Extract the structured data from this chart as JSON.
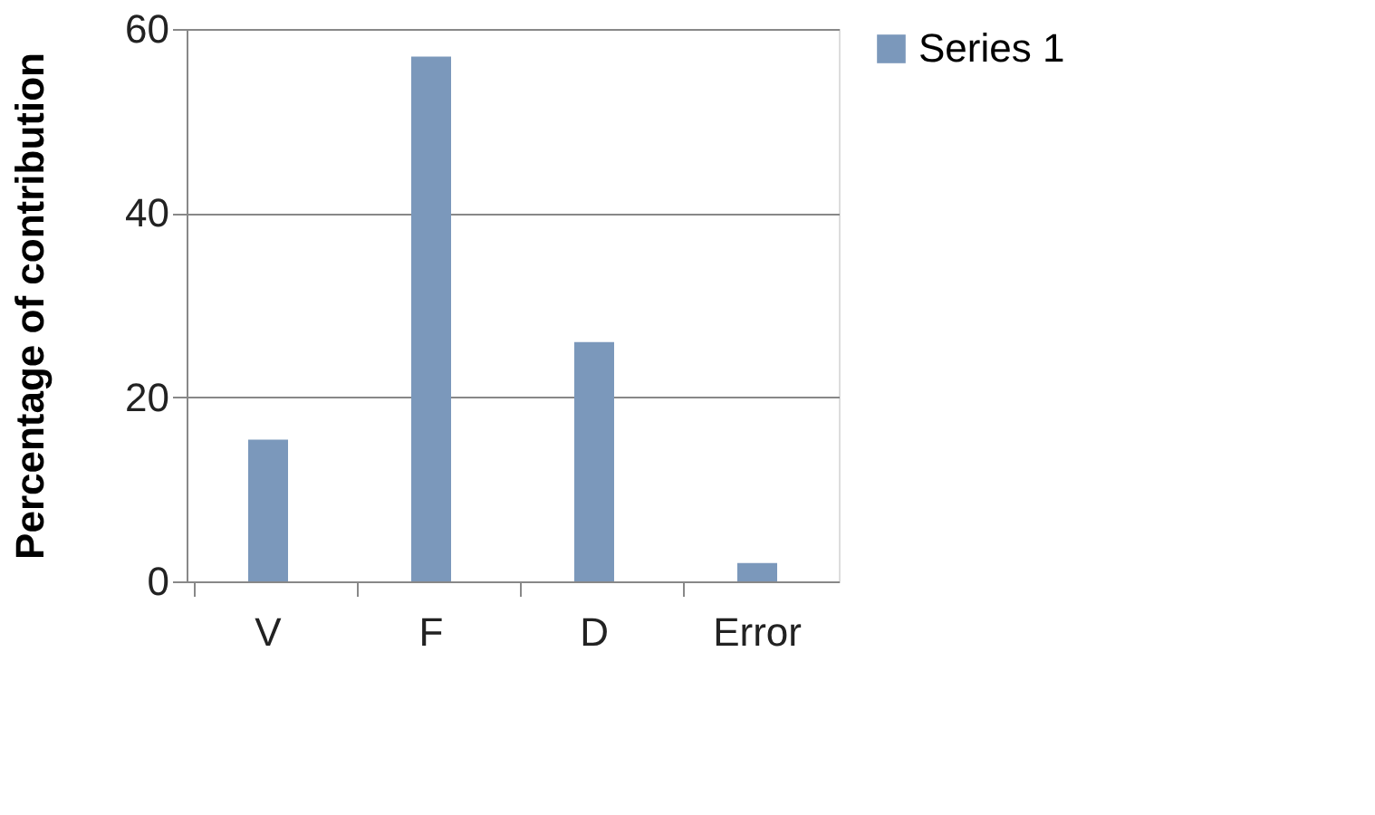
{
  "chart_data": {
    "type": "bar",
    "ylabel": "Percentage of contribution",
    "categories": [
      "V",
      "F",
      "D",
      "Error"
    ],
    "series": [
      {
        "name": "Series 1",
        "color": "#7b98bb",
        "values": [
          15.4,
          57,
          26,
          2
        ]
      }
    ],
    "ylim": [
      0,
      60
    ],
    "yticks": [
      0,
      20,
      40,
      60
    ],
    "grid": "y",
    "legend": "right"
  }
}
